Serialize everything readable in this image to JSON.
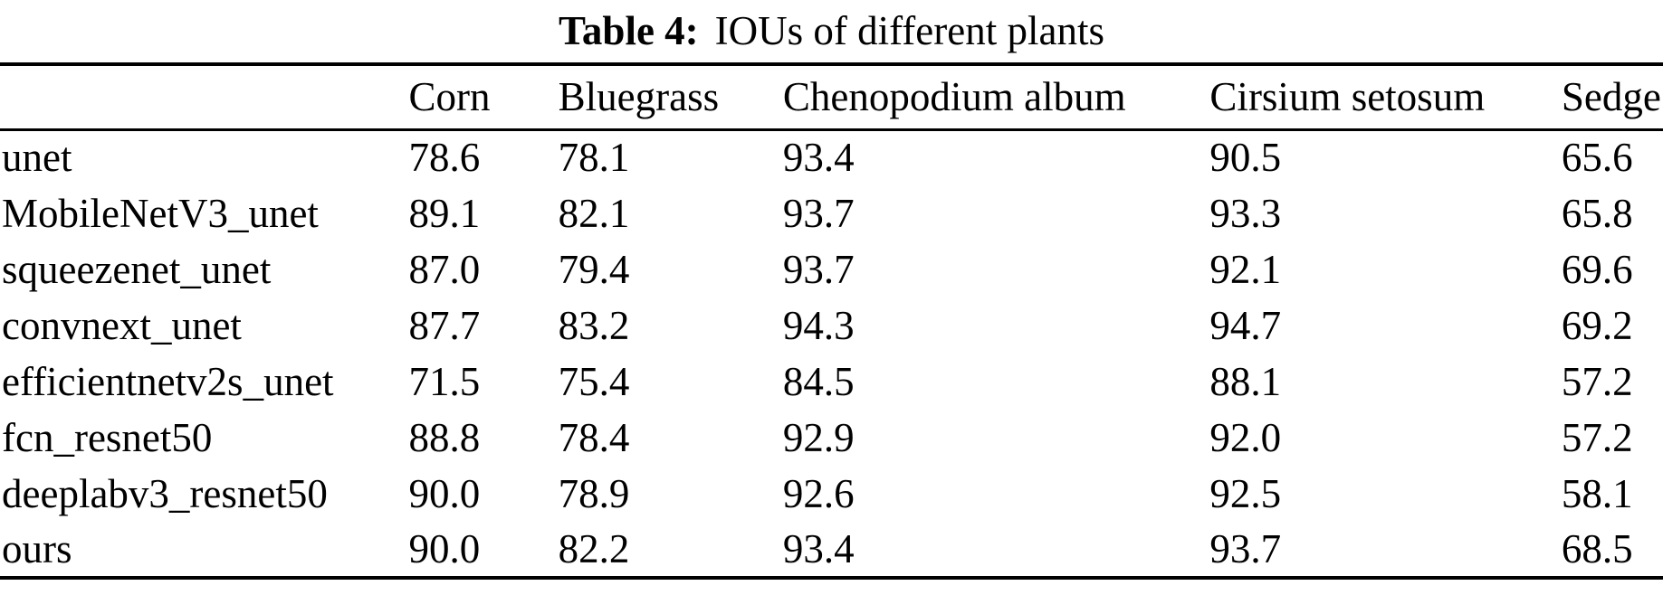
{
  "table": {
    "caption_label": "Table 4:",
    "caption_text": "IOUs of different plants",
    "headers": [
      "",
      "Corn",
      "Bluegrass",
      "Chenopodium album",
      "Cirsium setosum",
      "Sedge"
    ],
    "rows": [
      [
        "unet",
        "78.6",
        "78.1",
        "93.4",
        "90.5",
        "65.6"
      ],
      [
        "MobileNetV3_unet",
        "89.1",
        "82.1",
        "93.7",
        "93.3",
        "65.8"
      ],
      [
        "squeezenet_unet",
        "87.0",
        "79.4",
        "93.7",
        "92.1",
        "69.6"
      ],
      [
        "convnext_unet",
        "87.7",
        "83.2",
        "94.3",
        "94.7",
        "69.2"
      ],
      [
        "efficientnetv2s_unet",
        "71.5",
        "75.4",
        "84.5",
        "88.1",
        "57.2"
      ],
      [
        "fcn_resnet50",
        "88.8",
        "78.4",
        "92.9",
        "92.0",
        "57.2"
      ],
      [
        "deeplabv3_resnet50",
        "90.0",
        "78.9",
        "92.6",
        "92.5",
        "58.1"
      ],
      [
        "ours",
        "90.0",
        "82.2",
        "93.4",
        "93.7",
        "68.5"
      ]
    ]
  }
}
